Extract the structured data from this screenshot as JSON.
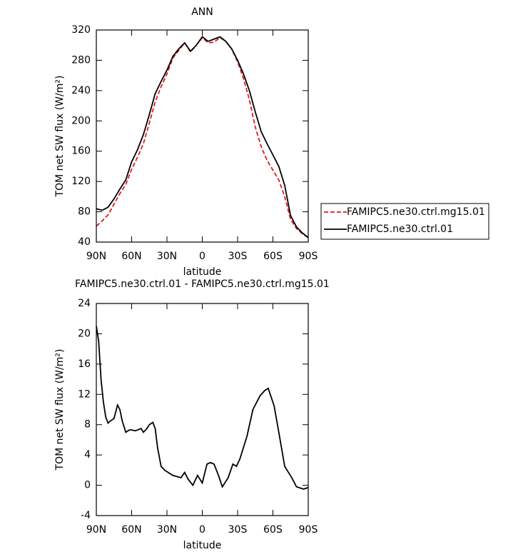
{
  "chart_data": [
    {
      "type": "line",
      "title": "ANN",
      "xlabel": "latitude",
      "ylabel": "TOM net SW flux (W/m²)",
      "x": [
        90,
        85,
        80,
        75,
        70,
        65,
        60,
        55,
        50,
        45,
        40,
        35,
        30,
        25,
        20,
        15,
        10,
        5,
        0,
        -5,
        -10,
        -15,
        -20,
        -25,
        -30,
        -35,
        -40,
        -45,
        -50,
        -55,
        -60,
        -65,
        -70,
        -75,
        -80,
        -85,
        -90
      ],
      "series": [
        {
          "name": "FAMIPC5.ne30.ctrl.mg15.01",
          "color": "#e41a1c",
          "linestyle": "dashed",
          "values": [
            61,
            68,
            76,
            90,
            104,
            116,
            136,
            152,
            170,
            197,
            225,
            245,
            262,
            283,
            293,
            303,
            291,
            300,
            310,
            303,
            304,
            310,
            305,
            295,
            278,
            256,
            228,
            192,
            166,
            148,
            135,
            122,
            100,
            70,
            58,
            51,
            46
          ]
        },
        {
          "name": "FAMIPC5.ne30.ctrl.01",
          "color": "#000000",
          "linestyle": "solid",
          "values": [
            84,
            82,
            86,
            97,
            110,
            122,
            146,
            162,
            182,
            208,
            236,
            252,
            267,
            285,
            295,
            303,
            292,
            300,
            311,
            305,
            308,
            311,
            305,
            295,
            280,
            262,
            240,
            212,
            186,
            170,
            155,
            140,
            115,
            75,
            60,
            52,
            46
          ]
        }
      ],
      "xlim": [
        90,
        -90
      ],
      "xticks": [
        {
          "value": 90,
          "label": "90N"
        },
        {
          "value": 60,
          "label": "60N"
        },
        {
          "value": 30,
          "label": "30N"
        },
        0,
        {
          "value": -30,
          "label": "30S"
        },
        {
          "value": -60,
          "label": "60S"
        },
        {
          "value": -90,
          "label": "90S"
        }
      ],
      "ylim": [
        40,
        320
      ],
      "yticks": [
        40,
        80,
        120,
        160,
        200,
        240,
        280,
        320
      ],
      "legend": "right"
    },
    {
      "type": "line",
      "title": "FAMIPC5.ne30.ctrl.01 - FAMIPC5.ne30.ctrl.mg15.01",
      "xlabel": "latitude",
      "ylabel": "TOM net SW flux (W/m²)",
      "x": [
        90,
        88,
        86,
        84,
        82,
        80,
        78,
        75,
        72,
        70,
        68,
        65,
        62,
        60,
        57,
        55,
        52,
        50,
        47,
        45,
        42,
        40,
        38,
        35,
        32,
        30,
        25,
        18,
        15,
        12,
        8,
        4,
        0,
        -4,
        -7,
        -10,
        -14,
        -17,
        -22,
        -26,
        -29,
        -32,
        -38,
        -43,
        -49,
        -53,
        -56,
        -61,
        -65,
        -70,
        -76,
        -80,
        -86,
        -90
      ],
      "series": [
        {
          "color": "#000000",
          "linestyle": "solid",
          "values": [
            21,
            19,
            14,
            11,
            9,
            8.2,
            8.5,
            8.8,
            10.6,
            10,
            8.5,
            7,
            7.3,
            7.3,
            7.2,
            7.3,
            7.5,
            7,
            7.5,
            8,
            8.3,
            7.5,
            5,
            2.5,
            2,
            1.8,
            1.3,
            1,
            1.7,
            0.8,
            0,
            1.3,
            0.3,
            2.8,
            3,
            2.8,
            1.2,
            -0.2,
            1,
            2.8,
            2.5,
            3.5,
            6.5,
            10,
            11.8,
            12.5,
            12.8,
            10.5,
            7,
            2.5,
            1,
            -0.2,
            -0.5,
            -0.3
          ]
        }
      ],
      "xlim": [
        90,
        -90
      ],
      "xticks": [
        {
          "value": 90,
          "label": "90N"
        },
        {
          "value": 60,
          "label": "60N"
        },
        {
          "value": 30,
          "label": "30N"
        },
        0,
        {
          "value": -30,
          "label": "30S"
        },
        {
          "value": -60,
          "label": "60S"
        },
        {
          "value": -90,
          "label": "90S"
        }
      ],
      "ylim": [
        -4,
        24
      ],
      "yticks": [
        -4,
        0,
        4,
        8,
        12,
        16,
        20,
        24
      ]
    }
  ]
}
